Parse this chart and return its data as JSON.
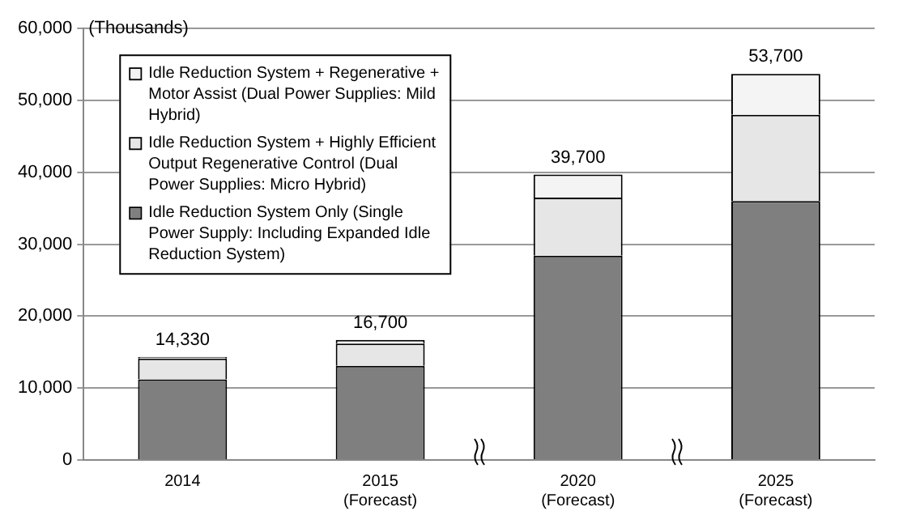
{
  "chart_data": {
    "type": "bar",
    "stacked": true,
    "ylabel": "(Thousands)",
    "categories": [
      "2014",
      "2015 (Forecast)",
      "2020 (Forecast)",
      "2025 (Forecast)"
    ],
    "series": [
      {
        "name": "Idle Reduction System Only (Single Power Supply: Including Expanded Idle Reduction System)",
        "color": "#7f7f7f",
        "values": [
          11200,
          13100,
          28400,
          36000
        ]
      },
      {
        "name": "Idle Reduction System + Highly Efficient Output Regenerative Control (Dual Power Supplies: Micro Hybrid)",
        "color": "#e6e6e6",
        "values": [
          2900,
          3100,
          8100,
          12000
        ]
      },
      {
        "name": "Idle Reduction System + Regenerative + Motor Assist (Dual Power Supplies: Mild Hybrid)",
        "color": "#f4f4f4",
        "values": [
          230,
          500,
          3200,
          5700
        ]
      }
    ],
    "totals": [
      "14,330",
      "16,700",
      "39,700",
      "53,700"
    ],
    "ylim": [
      0,
      60000
    ],
    "yticks": [
      0,
      {
        "value": 10000,
        "label": "10,000"
      },
      {
        "value": 20000,
        "label": "20,000"
      },
      {
        "value": 30000,
        "label": "30,000"
      },
      {
        "value": 40000,
        "label": "40,000"
      },
      {
        "value": 50000,
        "label": "50,000"
      },
      {
        "value": 60000,
        "label": "60,000"
      }
    ],
    "grid": "y",
    "legend": "top left"
  }
}
